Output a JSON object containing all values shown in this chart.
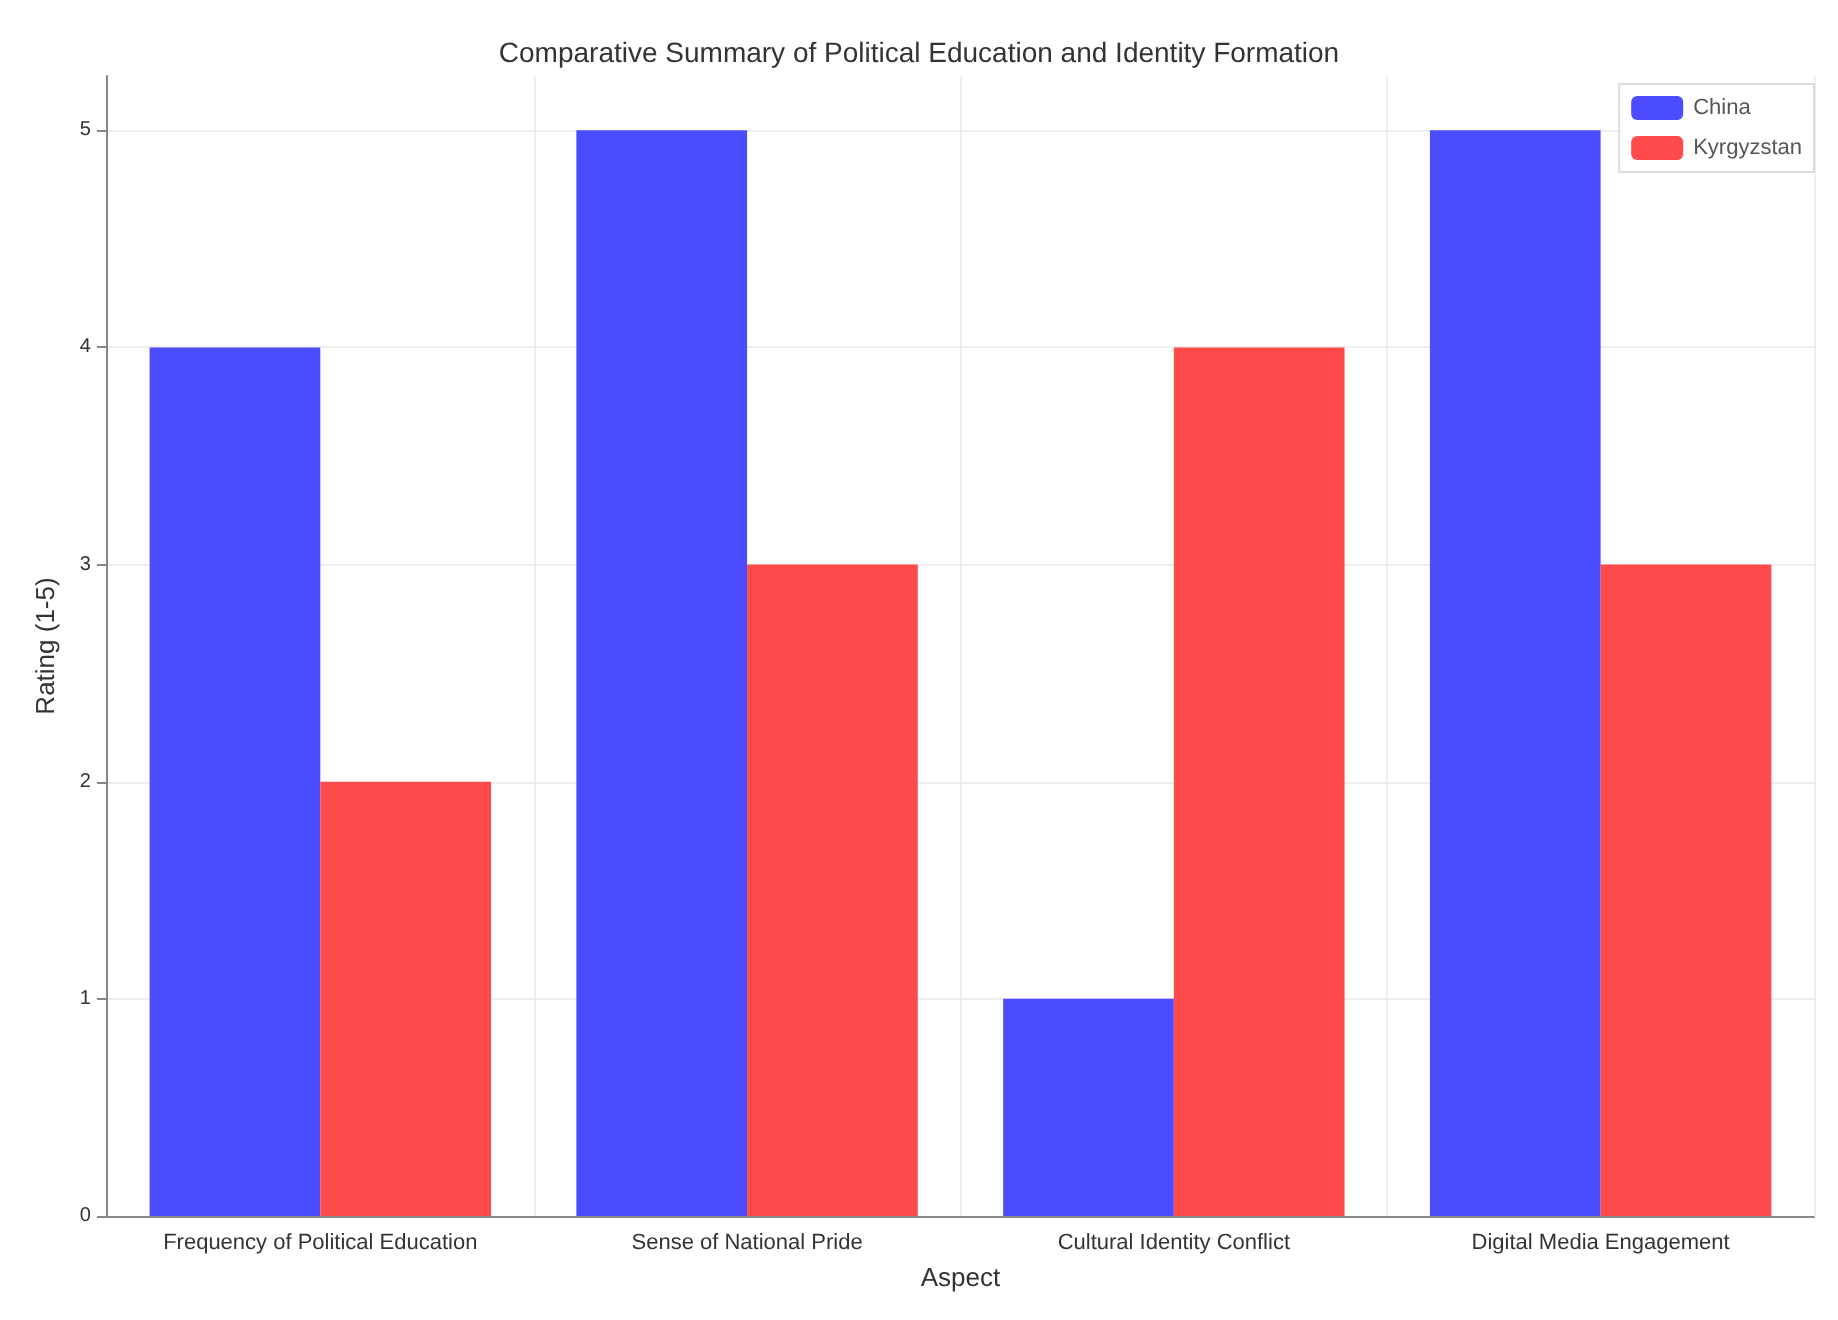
{
  "chart_data": {
    "type": "bar",
    "title": "Comparative Summary of Political Education and Identity Formation",
    "xlabel": "Aspect",
    "ylabel": "Rating (1-5)",
    "categories": [
      "Frequency of Political Education",
      "Sense of National Pride",
      "Cultural Identity Conflict",
      "Digital Media Engagement"
    ],
    "series": [
      {
        "name": "China",
        "color": "#4b4bff",
        "values": [
          4,
          5,
          1,
          5
        ]
      },
      {
        "name": "Kyrgyzstan",
        "color": "#ff4b4b",
        "values": [
          2,
          3,
          4,
          3
        ]
      }
    ],
    "ylim": [
      0,
      5.25
    ],
    "yticks": [
      0,
      1,
      2,
      3,
      4,
      5
    ],
    "grid": true,
    "legend": "top right"
  }
}
